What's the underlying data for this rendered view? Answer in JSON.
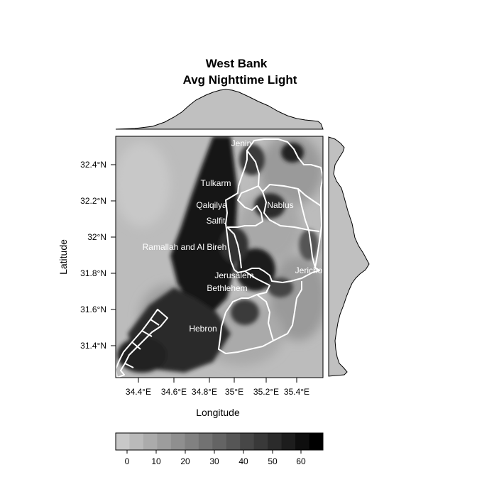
{
  "title_line1": "West Bank",
  "title_line2": "Avg Nighttime Light",
  "xlabel": "Longitude",
  "ylabel": "Latitude",
  "x_ticks": [
    "34.4°E",
    "34.6°E",
    "34.8°E",
    "35°E",
    "35.2°E",
    "35.4°E"
  ],
  "y_ticks": [
    "32.4°N",
    "32.2°N",
    "32°N",
    "31.8°N",
    "31.6°N",
    "31.4°N"
  ],
  "colorbar_ticks": [
    "0",
    "10",
    "20",
    "30",
    "40",
    "50",
    "60"
  ],
  "regions": [
    "Jenin",
    "Tulkarm",
    "Qalqilya",
    "Nablus",
    "Salfit",
    "Ramallah and Al Bireh",
    "Jericho",
    "Jerusalem",
    "Bethlehem",
    "Hebron"
  ],
  "chart_data": {
    "type": "heatmap",
    "title": "West Bank\nAvg Nighttime Light",
    "xlabel": "Longitude",
    "ylabel": "Latitude",
    "xlim": [
      34.2,
      35.72
    ],
    "ylim": [
      31.22,
      32.56
    ],
    "color_scale": {
      "min": 0,
      "max": 67,
      "steps": 15,
      "palette": "grayscale light-to-dark"
    },
    "region_labels": [
      {
        "name": "Jenin",
        "lon": 35.06,
        "lat": 32.52
      },
      {
        "name": "Tulkarm",
        "lon": 34.99,
        "lat": 32.3
      },
      {
        "name": "Qalqilya",
        "lon": 34.98,
        "lat": 32.18
      },
      {
        "name": "Nablus",
        "lon": 35.28,
        "lat": 32.18
      },
      {
        "name": "Salfit",
        "lon": 34.98,
        "lat": 32.09
      },
      {
        "name": "Ramallah and Al Bireh",
        "lon": 34.81,
        "lat": 31.95
      },
      {
        "name": "Jericho",
        "lon": 35.43,
        "lat": 31.83
      },
      {
        "name": "Jerusalem",
        "lon": 35.04,
        "lat": 31.81
      },
      {
        "name": "Bethlehem",
        "lon": 35.04,
        "lat": 31.74
      },
      {
        "name": "Hebron",
        "lon": 34.85,
        "lat": 31.5
      }
    ]
  }
}
